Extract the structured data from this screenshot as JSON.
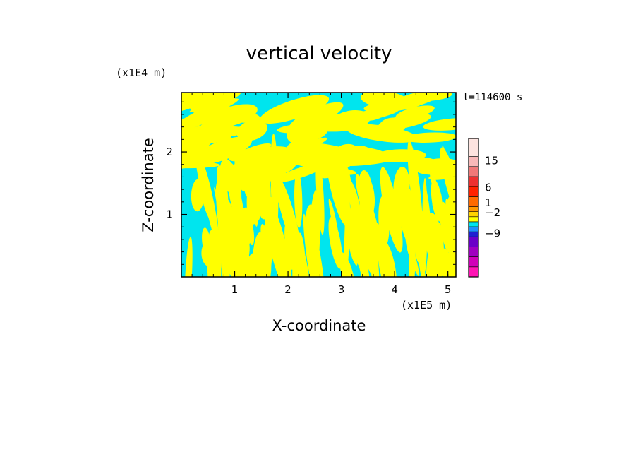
{
  "chart_data": {
    "type": "heatmap",
    "title": "vertical velocity",
    "xlabel": "X-coordinate",
    "ylabel": "Z-coordinate",
    "x_unit": "(x1E5 m)",
    "y_unit": "(x1E4 m)",
    "time_label": "t=114600 s",
    "xlim": [
      0,
      5.15
    ],
    "ylim": [
      0,
      2.95
    ],
    "x_ticks": [
      {
        "value": 1,
        "label": "1"
      },
      {
        "value": 2,
        "label": "2"
      },
      {
        "value": 3,
        "label": "3"
      },
      {
        "value": 4,
        "label": "4"
      },
      {
        "value": 5,
        "label": "5"
      }
    ],
    "y_ticks": [
      {
        "value": 1,
        "label": "1"
      },
      {
        "value": 2,
        "label": "2"
      }
    ],
    "field_colors": {
      "positive": "#ffff00",
      "negative": "#00e5ee"
    },
    "colorbar": {
      "bands": [
        "#ff14b4",
        "#d000b8",
        "#a000c0",
        "#6a00c8",
        "#2020d0",
        "#1e90ff",
        "#00e5ee",
        "#ffff00",
        "#ffd200",
        "#ff9900",
        "#ff6a00",
        "#ff2200",
        "#ee3030",
        "#f07878",
        "#f8b8b8",
        "#fde4e0"
      ],
      "band_weights": [
        1,
        1,
        1,
        1,
        0.5,
        0.5,
        0.5,
        0.5,
        0.5,
        0.5,
        1,
        1,
        1,
        1,
        1,
        1.8
      ],
      "labels": [
        {
          "value": "15",
          "pos": 0.16
        },
        {
          "value": "6",
          "pos": 0.355
        },
        {
          "value": "1",
          "pos": 0.465
        },
        {
          "value": "−2",
          "pos": 0.535
        },
        {
          "value": "−9",
          "pos": 0.685
        }
      ]
    }
  }
}
